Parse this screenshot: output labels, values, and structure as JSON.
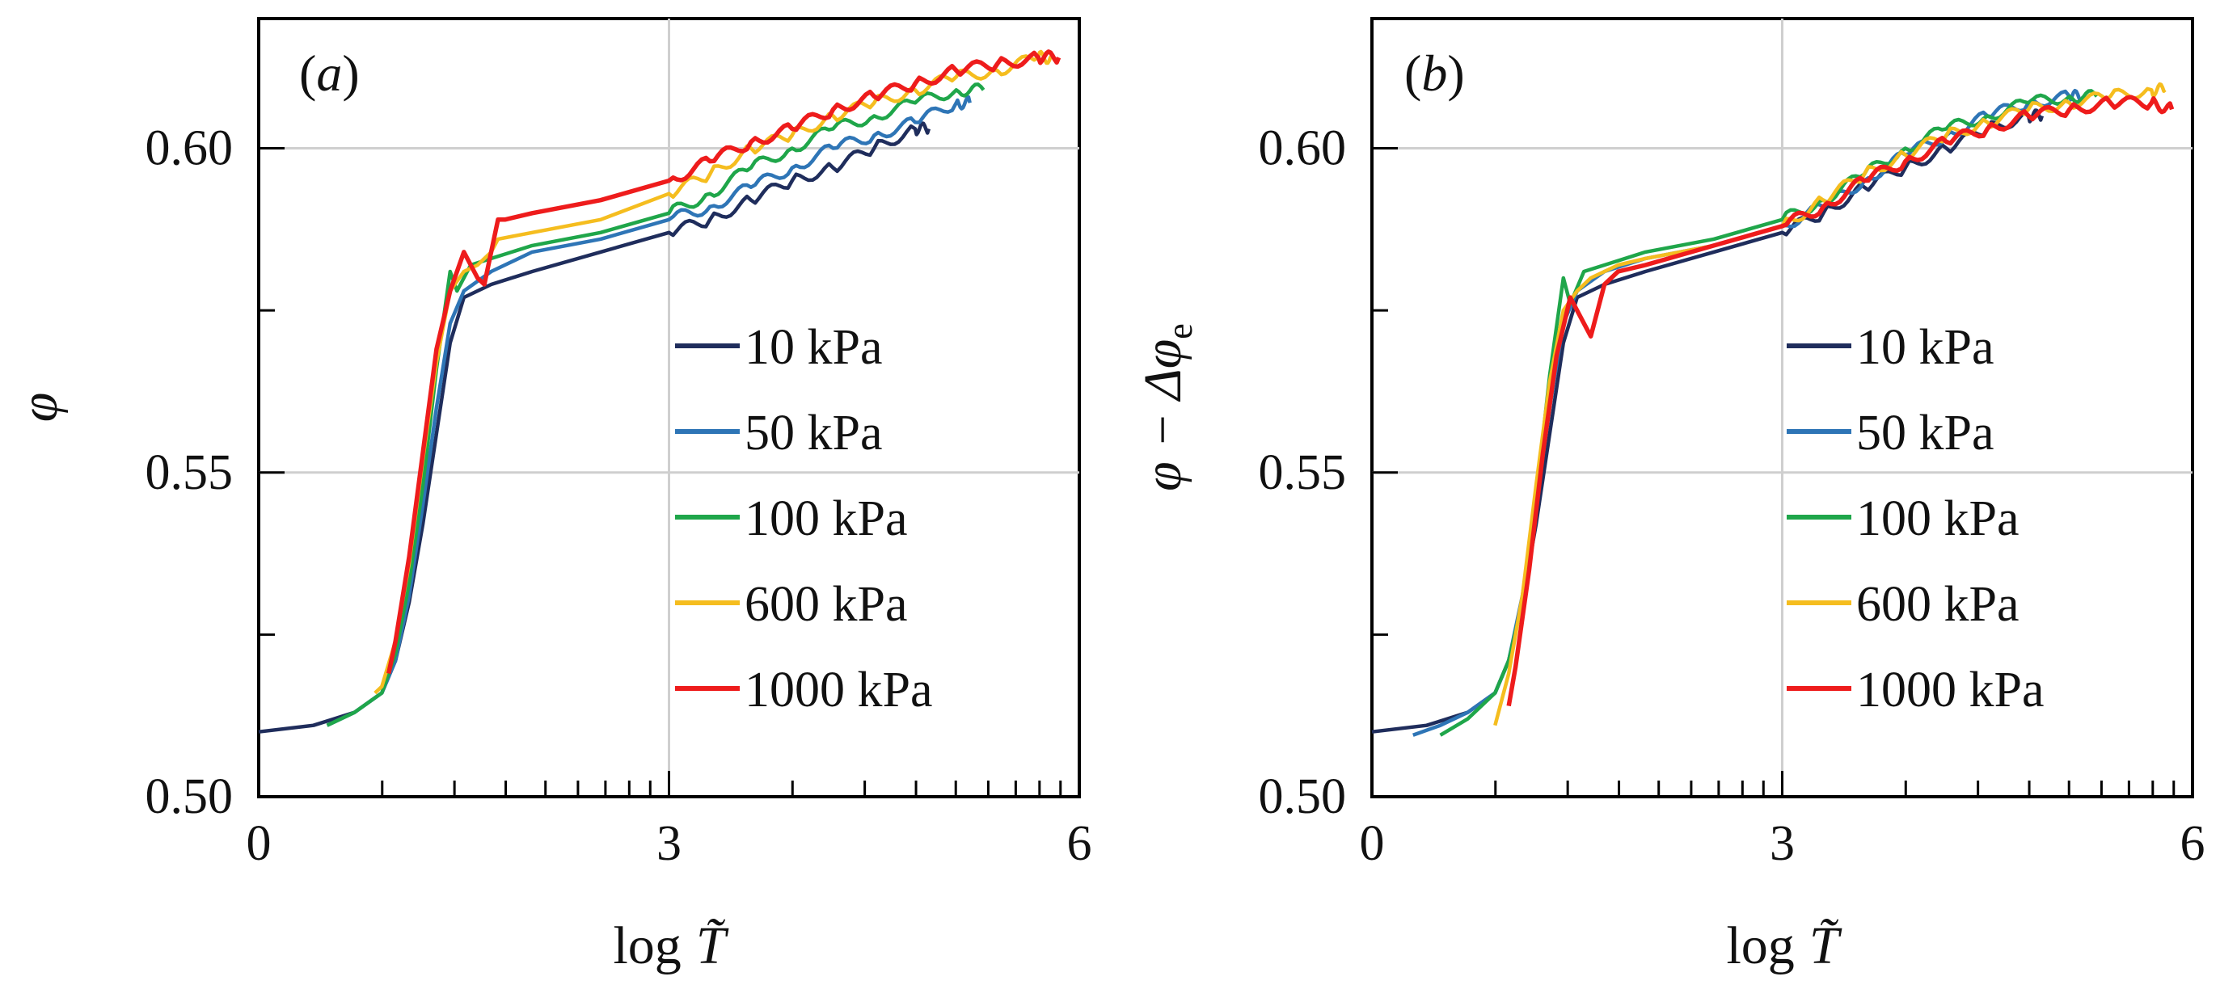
{
  "series_colors": {
    "10 kPa": "#1f2d5c",
    "50 kPa": "#2e75b6",
    "100 kPa": "#1fa64a",
    "600 kPa": "#f5bd1f",
    "1000 kPa": "#ee1c1c"
  },
  "chart_data": [
    {
      "type": "line",
      "panel": "a",
      "panel_label_open": "(",
      "panel_label_letter": "a",
      "panel_label_close": ")",
      "xlabel": "log T̃",
      "xlabel_prefix": "log",
      "xlabel_var": "T̃",
      "ylabel": "φ",
      "xlim": [
        0,
        6
      ],
      "ylim": [
        0.5,
        0.62
      ],
      "x_ticks": [
        {
          "value": 0,
          "label": "0"
        },
        {
          "value": 3,
          "label": "3"
        },
        {
          "value": 6,
          "label": "6"
        }
      ],
      "y_ticks": [
        {
          "value": 0.5,
          "label": "0.50"
        },
        {
          "value": 0.55,
          "label": "0.55"
        },
        {
          "value": 0.6,
          "label": "0.60"
        }
      ],
      "grid": true,
      "legend_position": "right",
      "series": [
        {
          "name": "10 kPa",
          "x": [
            0,
            0.4,
            0.7,
            0.9,
            1.0,
            1.1,
            1.2,
            1.3,
            1.4,
            1.5,
            1.7,
            2.0,
            2.5,
            3.0,
            3.3,
            3.6,
            3.9,
            4.2,
            4.5,
            4.8,
            4.9
          ],
          "y": [
            0.51,
            0.511,
            0.513,
            0.516,
            0.521,
            0.53,
            0.542,
            0.556,
            0.57,
            0.577,
            0.579,
            0.581,
            0.584,
            0.587,
            0.589,
            0.592,
            0.595,
            0.597,
            0.6,
            0.603,
            0.603
          ]
        },
        {
          "name": "50 kPa",
          "x": [
            0.5,
            0.7,
            0.9,
            1.0,
            1.1,
            1.2,
            1.3,
            1.4,
            1.5,
            1.7,
            2.0,
            2.5,
            3.0,
            3.3,
            3.6,
            3.9,
            4.2,
            4.5,
            4.8,
            5.1,
            5.2
          ],
          "y": [
            0.511,
            0.513,
            0.516,
            0.521,
            0.531,
            0.545,
            0.56,
            0.573,
            0.578,
            0.581,
            0.584,
            0.586,
            0.589,
            0.591,
            0.594,
            0.597,
            0.6,
            0.602,
            0.604,
            0.607,
            0.607
          ]
        },
        {
          "name": "100 kPa",
          "x": [
            0.5,
            0.7,
            0.9,
            1.0,
            1.1,
            1.2,
            1.3,
            1.4,
            1.45,
            1.55,
            1.7,
            2.0,
            2.5,
            3.0,
            3.3,
            3.6,
            3.9,
            4.2,
            4.5,
            4.8,
            5.1,
            5.3
          ],
          "y": [
            0.511,
            0.513,
            0.516,
            0.522,
            0.533,
            0.548,
            0.566,
            0.581,
            0.578,
            0.582,
            0.583,
            0.585,
            0.587,
            0.59,
            0.593,
            0.597,
            0.6,
            0.603,
            0.605,
            0.607,
            0.609,
            0.609
          ]
        },
        {
          "name": "600 kPa",
          "x": [
            0.85,
            0.9,
            1.0,
            1.1,
            1.2,
            1.3,
            1.4,
            1.5,
            1.6,
            1.7,
            1.75,
            2.0,
            2.5,
            3.0,
            3.3,
            3.6,
            3.9,
            4.2,
            4.5,
            4.8,
            5.1,
            5.4,
            5.7,
            5.8
          ],
          "y": [
            0.516,
            0.517,
            0.524,
            0.536,
            0.552,
            0.567,
            0.578,
            0.581,
            0.582,
            0.584,
            0.586,
            0.587,
            0.589,
            0.593,
            0.596,
            0.6,
            0.602,
            0.605,
            0.607,
            0.609,
            0.611,
            0.612,
            0.614,
            0.614
          ]
        },
        {
          "name": "1000 kPa",
          "x": [
            0.95,
            1.0,
            1.1,
            1.2,
            1.3,
            1.4,
            1.5,
            1.6,
            1.65,
            1.75,
            1.8,
            2.0,
            2.5,
            3.0,
            3.3,
            3.6,
            3.9,
            4.2,
            4.5,
            4.8,
            5.1,
            5.4,
            5.7,
            5.85
          ],
          "y": [
            0.519,
            0.524,
            0.537,
            0.553,
            0.569,
            0.578,
            0.584,
            0.58,
            0.579,
            0.589,
            0.589,
            0.59,
            0.592,
            0.595,
            0.598,
            0.601,
            0.603,
            0.606,
            0.608,
            0.61,
            0.612,
            0.613,
            0.614,
            0.614
          ]
        }
      ]
    },
    {
      "type": "line",
      "panel": "b",
      "panel_label_open": "(",
      "panel_label_letter": "b",
      "panel_label_close": ")",
      "xlabel": "log T̃",
      "xlabel_prefix": "log",
      "xlabel_var": "T̃",
      "ylabel": "φ − Δφe",
      "ylabel_main": "φ − Δφ",
      "ylabel_sub": "e",
      "xlim": [
        0,
        6
      ],
      "ylim": [
        0.5,
        0.62
      ],
      "x_ticks": [
        {
          "value": 0,
          "label": "0"
        },
        {
          "value": 3,
          "label": "3"
        },
        {
          "value": 6,
          "label": "6"
        }
      ],
      "y_ticks": [
        {
          "value": 0.5,
          "label": "0.50"
        },
        {
          "value": 0.55,
          "label": "0.55"
        },
        {
          "value": 0.6,
          "label": "0.60"
        }
      ],
      "grid": true,
      "legend_position": "right",
      "series": [
        {
          "name": "10 kPa",
          "x": [
            0,
            0.4,
            0.7,
            0.9,
            1.0,
            1.1,
            1.2,
            1.3,
            1.4,
            1.5,
            1.7,
            2.0,
            2.5,
            3.0,
            3.3,
            3.6,
            3.9,
            4.2,
            4.5,
            4.8,
            4.9
          ],
          "y": [
            0.51,
            0.511,
            0.513,
            0.516,
            0.521,
            0.53,
            0.542,
            0.556,
            0.57,
            0.577,
            0.579,
            0.581,
            0.584,
            0.587,
            0.59,
            0.594,
            0.597,
            0.6,
            0.603,
            0.605,
            0.605
          ]
        },
        {
          "name": "50 kPa",
          "x": [
            0.3,
            0.5,
            0.7,
            0.9,
            1.0,
            1.1,
            1.2,
            1.3,
            1.4,
            1.5,
            1.7,
            2.0,
            2.5,
            3.0,
            3.3,
            3.6,
            3.9,
            4.2,
            4.5,
            4.8,
            5.1,
            5.2
          ],
          "y": [
            0.5095,
            0.511,
            0.513,
            0.516,
            0.521,
            0.531,
            0.545,
            0.56,
            0.573,
            0.578,
            0.581,
            0.583,
            0.585,
            0.588,
            0.591,
            0.595,
            0.599,
            0.602,
            0.605,
            0.607,
            0.608,
            0.608
          ]
        },
        {
          "name": "100 kPa",
          "x": [
            0.5,
            0.7,
            0.9,
            1.0,
            1.1,
            1.2,
            1.3,
            1.4,
            1.45,
            1.55,
            1.7,
            2.0,
            2.5,
            3.0,
            3.3,
            3.6,
            3.9,
            4.2,
            4.5,
            4.8,
            5.1,
            5.3
          ],
          "y": [
            0.5095,
            0.512,
            0.516,
            0.521,
            0.53,
            0.546,
            0.565,
            0.58,
            0.576,
            0.581,
            0.582,
            0.584,
            0.586,
            0.589,
            0.592,
            0.596,
            0.6,
            0.603,
            0.605,
            0.607,
            0.608,
            0.608
          ]
        },
        {
          "name": "600 kPa",
          "x": [
            0.9,
            1.0,
            1.1,
            1.2,
            1.3,
            1.4,
            1.5,
            1.6,
            1.7,
            1.8,
            2.0,
            2.5,
            3.0,
            3.3,
            3.6,
            3.9,
            4.2,
            4.5,
            4.8,
            5.1,
            5.4,
            5.7,
            5.8
          ],
          "y": [
            0.511,
            0.519,
            0.531,
            0.548,
            0.564,
            0.575,
            0.578,
            0.58,
            0.581,
            0.582,
            0.583,
            0.585,
            0.588,
            0.592,
            0.596,
            0.599,
            0.602,
            0.604,
            0.606,
            0.607,
            0.608,
            0.609,
            0.609
          ]
        },
        {
          "name": "1000 kPa",
          "x": [
            1.0,
            1.05,
            1.15,
            1.25,
            1.35,
            1.45,
            1.55,
            1.6,
            1.7,
            1.8,
            2.0,
            2.5,
            3.0,
            3.3,
            3.6,
            3.9,
            4.2,
            4.5,
            4.8,
            5.1,
            5.4,
            5.7,
            5.85
          ],
          "y": [
            0.514,
            0.52,
            0.535,
            0.553,
            0.568,
            0.577,
            0.573,
            0.571,
            0.579,
            0.581,
            0.582,
            0.585,
            0.588,
            0.591,
            0.595,
            0.598,
            0.601,
            0.603,
            0.605,
            0.606,
            0.607,
            0.607,
            0.606
          ]
        }
      ]
    }
  ]
}
